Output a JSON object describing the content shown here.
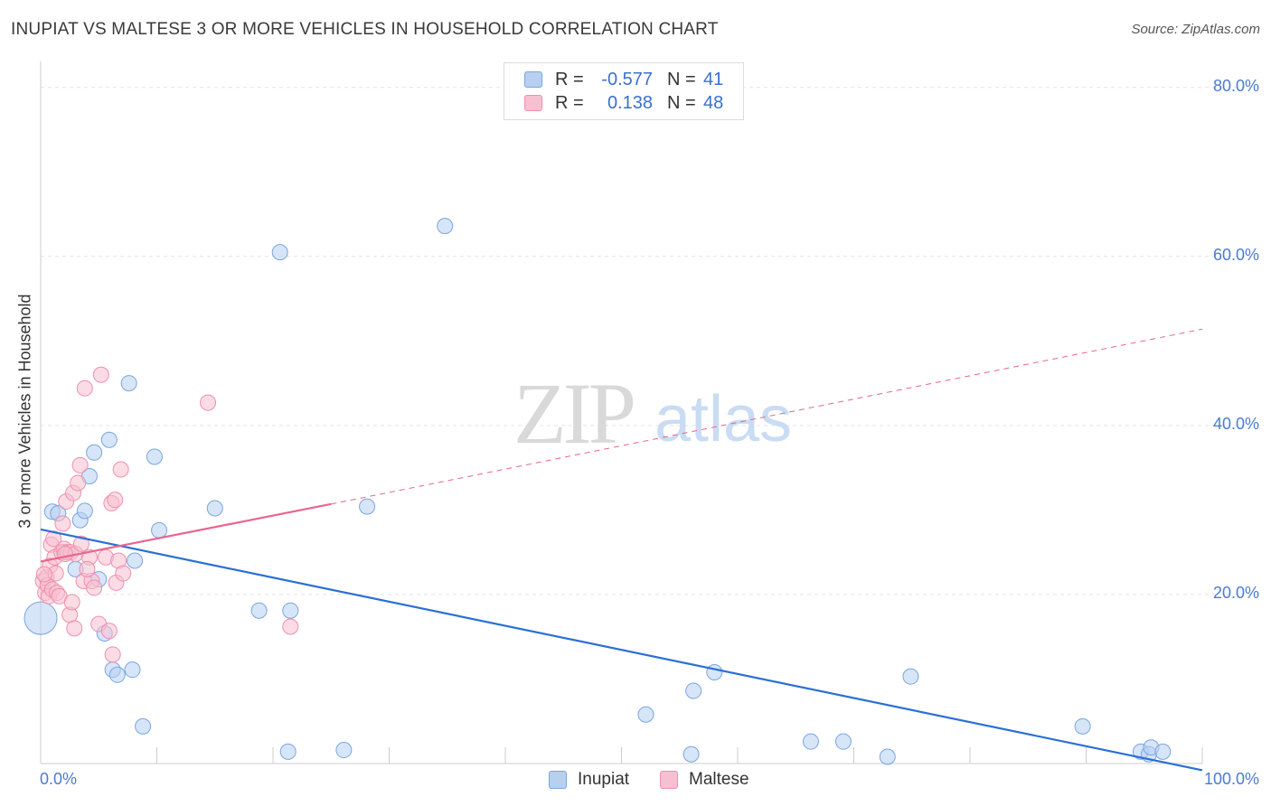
{
  "title": "INUPIAT VS MALTESE 3 OR MORE VEHICLES IN HOUSEHOLD CORRELATION CHART",
  "source": "Source: ZipAtlas.com",
  "watermark": {
    "zip": "ZIP",
    "atlas": "atlas"
  },
  "colors": {
    "inupiat_fill": "#b7d0f2",
    "inupiat_stroke": "#7aa5e0",
    "inupiat_line": "#2a6fd4",
    "maltese_fill": "#f7bfd0",
    "maltese_stroke": "#ee8fae",
    "maltese_line": "#e8668f",
    "value_text": "#3a6fd0",
    "grid": "#e3e3e3"
  },
  "legend": {
    "rows": [
      {
        "series": "Inupiat",
        "r_label": "R =",
        "r_value": "-0.577",
        "n_label": "N =",
        "n_value": "41"
      },
      {
        "series": "Maltese",
        "r_label": "R =",
        "r_value": "0.138",
        "n_label": "N =",
        "n_value": "48"
      }
    ]
  },
  "chart_data": {
    "type": "scatter",
    "title": "INUPIAT VS MALTESE 3 OR MORE VEHICLES IN HOUSEHOLD CORRELATION CHART",
    "xlabel": "",
    "ylabel": "3 or more Vehicles in Household",
    "xlim": [
      0,
      100
    ],
    "ylim": [
      0,
      82
    ],
    "x_tick_labels": [
      "0.0%",
      "100.0%"
    ],
    "y_ticks": [
      20,
      40,
      60,
      80
    ],
    "y_tick_labels": [
      "20.0%",
      "40.0%",
      "60.0%",
      "80.0%"
    ],
    "grid": true,
    "legend_position": "bottom",
    "series": [
      {
        "name": "Inupiat",
        "points": [
          [
            0.0,
            17.2
          ],
          [
            1.0,
            29.8
          ],
          [
            1.5,
            29.6
          ],
          [
            3.4,
            28.8
          ],
          [
            3.8,
            29.9
          ],
          [
            4.2,
            34.0
          ],
          [
            4.6,
            36.8
          ],
          [
            5.0,
            21.8
          ],
          [
            5.5,
            15.4
          ],
          [
            5.9,
            38.3
          ],
          [
            6.2,
            11.1
          ],
          [
            6.6,
            10.5
          ],
          [
            7.6,
            45.0
          ],
          [
            7.9,
            11.1
          ],
          [
            8.1,
            24.0
          ],
          [
            8.8,
            4.4
          ],
          [
            9.8,
            36.3
          ],
          [
            10.2,
            27.6
          ],
          [
            15.0,
            30.2
          ],
          [
            18.8,
            18.1
          ],
          [
            20.6,
            60.5
          ],
          [
            21.3,
            1.4
          ],
          [
            21.5,
            18.1
          ],
          [
            26.1,
            1.6
          ],
          [
            28.1,
            30.4
          ],
          [
            34.8,
            63.6
          ],
          [
            52.1,
            5.8
          ],
          [
            56.0,
            1.1
          ],
          [
            56.2,
            8.6
          ],
          [
            58.0,
            10.8
          ],
          [
            66.3,
            2.6
          ],
          [
            69.1,
            2.6
          ],
          [
            72.9,
            0.8
          ],
          [
            74.9,
            10.3
          ],
          [
            89.7,
            4.4
          ],
          [
            94.7,
            1.4
          ],
          [
            95.4,
            1.1
          ],
          [
            95.6,
            1.9
          ],
          [
            96.6,
            1.4
          ],
          [
            3.0,
            23.0
          ],
          [
            2.0,
            25.0
          ]
        ],
        "trend": {
          "x": [
            0,
            100
          ],
          "y": [
            27.7,
            -0.8
          ]
        }
      },
      {
        "name": "Maltese",
        "points": [
          [
            0.2,
            21.6
          ],
          [
            0.4,
            20.2
          ],
          [
            0.5,
            22.0
          ],
          [
            0.6,
            21.1
          ],
          [
            0.7,
            19.8
          ],
          [
            0.8,
            23.4
          ],
          [
            0.9,
            25.9
          ],
          [
            1.0,
            20.6
          ],
          [
            1.2,
            24.4
          ],
          [
            1.3,
            22.5
          ],
          [
            1.4,
            20.2
          ],
          [
            1.6,
            19.8
          ],
          [
            1.8,
            25.0
          ],
          [
            1.9,
            28.4
          ],
          [
            2.0,
            25.4
          ],
          [
            2.2,
            31.0
          ],
          [
            2.3,
            25.0
          ],
          [
            2.5,
            17.6
          ],
          [
            2.6,
            25.0
          ],
          [
            2.7,
            19.1
          ],
          [
            2.8,
            32.0
          ],
          [
            2.9,
            16.0
          ],
          [
            3.0,
            24.8
          ],
          [
            3.2,
            33.2
          ],
          [
            3.4,
            35.3
          ],
          [
            3.5,
            26.0
          ],
          [
            3.7,
            21.6
          ],
          [
            3.8,
            44.4
          ],
          [
            4.2,
            24.4
          ],
          [
            4.4,
            21.6
          ],
          [
            4.6,
            20.8
          ],
          [
            5.0,
            16.5
          ],
          [
            5.2,
            46.0
          ],
          [
            5.6,
            24.4
          ],
          [
            5.9,
            15.7
          ],
          [
            6.1,
            30.8
          ],
          [
            6.2,
            12.9
          ],
          [
            6.4,
            31.2
          ],
          [
            6.5,
            21.4
          ],
          [
            6.7,
            24.0
          ],
          [
            6.9,
            34.8
          ],
          [
            7.1,
            22.5
          ],
          [
            14.4,
            42.7
          ],
          [
            21.5,
            16.2
          ],
          [
            1.1,
            26.6
          ],
          [
            0.3,
            22.4
          ],
          [
            2.1,
            24.8
          ],
          [
            4.0,
            23.0
          ]
        ],
        "trend_solid": {
          "x": [
            0,
            25
          ],
          "y": [
            23.9,
            30.7
          ]
        },
        "trend_dashed": {
          "x": [
            25,
            100
          ],
          "y": [
            30.7,
            51.4
          ]
        }
      }
    ]
  },
  "bottom_legend": [
    {
      "label": "Inupiat"
    },
    {
      "label": "Maltese"
    }
  ]
}
